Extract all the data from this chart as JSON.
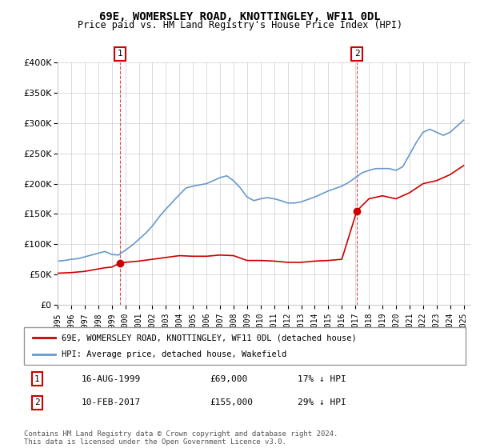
{
  "title": "69E, WOMERSLEY ROAD, KNOTTINGLEY, WF11 0DL",
  "subtitle": "Price paid vs. HM Land Registry's House Price Index (HPI)",
  "legend_entry1": "69E, WOMERSLEY ROAD, KNOTTINGLEY, WF11 0DL (detached house)",
  "legend_entry2": "HPI: Average price, detached house, Wakefield",
  "sale1_label": "16-AUG-1999",
  "sale1_price": "£69,000",
  "sale1_hpi": "17% ↓ HPI",
  "sale2_label": "10-FEB-2017",
  "sale2_price": "£155,000",
  "sale2_hpi": "29% ↓ HPI",
  "footnote": "Contains HM Land Registry data © Crown copyright and database right 2024.\nThis data is licensed under the Open Government Licence v3.0.",
  "red_color": "#cc0000",
  "blue_color": "#6699cc",
  "background_color": "#ffffff",
  "grid_color": "#cccccc",
  "ylim": [
    0,
    400000
  ],
  "xlim_start": 1995.0,
  "xlim_end": 2025.5,
  "sale1_x": 1999.62,
  "sale1_y": 69000,
  "sale2_x": 2017.11,
  "sale2_y": 155000,
  "hpi_x": [
    1995,
    1995.5,
    1996,
    1996.5,
    1997,
    1997.5,
    1998,
    1998.5,
    1999,
    1999.5,
    2000,
    2000.5,
    2001,
    2001.5,
    2002,
    2002.5,
    2003,
    2003.5,
    2004,
    2004.5,
    2005,
    2005.5,
    2006,
    2006.5,
    2007,
    2007.5,
    2008,
    2008.5,
    2009,
    2009.5,
    2010,
    2010.5,
    2011,
    2011.5,
    2012,
    2012.5,
    2013,
    2013.5,
    2014,
    2014.5,
    2015,
    2015.5,
    2016,
    2016.5,
    2017,
    2017.5,
    2018,
    2018.5,
    2019,
    2019.5,
    2020,
    2020.5,
    2021,
    2021.5,
    2022,
    2022.5,
    2023,
    2023.5,
    2024,
    2024.5,
    2025
  ],
  "hpi_y": [
    72000,
    73000,
    75000,
    76000,
    79000,
    82000,
    85000,
    88000,
    83000,
    82000,
    90000,
    98000,
    108000,
    118000,
    130000,
    145000,
    158000,
    170000,
    182000,
    193000,
    196000,
    198000,
    200000,
    205000,
    210000,
    213000,
    205000,
    193000,
    178000,
    172000,
    175000,
    177000,
    175000,
    172000,
    168000,
    168000,
    170000,
    174000,
    178000,
    183000,
    188000,
    192000,
    196000,
    202000,
    210000,
    218000,
    222000,
    225000,
    225000,
    225000,
    222000,
    228000,
    248000,
    268000,
    285000,
    290000,
    285000,
    280000,
    285000,
    295000,
    305000
  ],
  "red_x": [
    1995,
    1995.5,
    1996,
    1996.5,
    1997,
    1997.5,
    1998,
    1998.5,
    1999,
    1999.62,
    2000,
    2001,
    2002,
    2003,
    2004,
    2005,
    2006,
    2007,
    2008,
    2009,
    2010,
    2011,
    2012,
    2013,
    2014,
    2015,
    2016,
    2017.11,
    2018,
    2019,
    2020,
    2021,
    2022,
    2023,
    2024,
    2025
  ],
  "red_y": [
    52000,
    52500,
    53000,
    54000,
    55000,
    57000,
    59000,
    61000,
    62000,
    69000,
    70000,
    72000,
    75000,
    78000,
    81000,
    80000,
    80000,
    82000,
    81000,
    73000,
    73000,
    72000,
    70000,
    70000,
    72000,
    73000,
    75000,
    155000,
    175000,
    180000,
    175000,
    185000,
    200000,
    205000,
    215000,
    230000
  ]
}
